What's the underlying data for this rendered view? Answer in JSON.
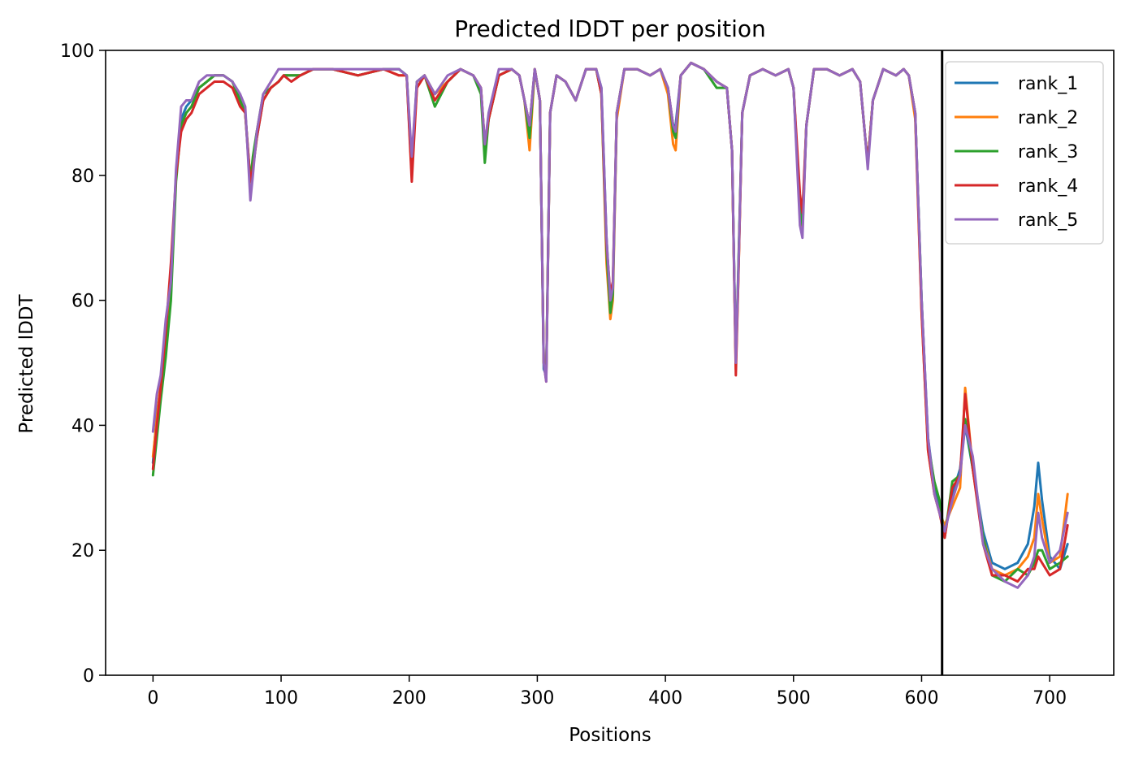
{
  "chart_data": {
    "type": "line",
    "title": "Predicted lDDT per position",
    "xlabel": "Positions",
    "ylabel": "Predicted lDDT",
    "xlim": [
      -37,
      750
    ],
    "ylim": [
      0,
      100
    ],
    "xticks": [
      0,
      100,
      200,
      300,
      400,
      500,
      600,
      700
    ],
    "yticks": [
      0,
      20,
      40,
      60,
      80,
      100
    ],
    "grid": false,
    "legend_position": "top-right",
    "vline": {
      "x": 616,
      "color": "#000000"
    },
    "series": [
      {
        "name": "rank_1",
        "color": "#1f77b4",
        "key_x": [
          0,
          3,
          6,
          10,
          14,
          18,
          22,
          26,
          30,
          36,
          42,
          48,
          55,
          62,
          68,
          72,
          76,
          78,
          81,
          86,
          92,
          98,
          102,
          108,
          115,
          125,
          140,
          160,
          180,
          192,
          198,
          202,
          206,
          212,
          220,
          230,
          240,
          250,
          256,
          259,
          262,
          270,
          280,
          286,
          290,
          294,
          298,
          302,
          305,
          307,
          310,
          315,
          322,
          330,
          338,
          346,
          350,
          354,
          357,
          359,
          362,
          368,
          378,
          388,
          396,
          402,
          406,
          408,
          412,
          420,
          430,
          440,
          448,
          452,
          455,
          457,
          460,
          466,
          476,
          486,
          496,
          500,
          505,
          507,
          510,
          516,
          526,
          536,
          546,
          552,
          556,
          558,
          562,
          570,
          580,
          586,
          590,
          595,
          600,
          605,
          610,
          614,
          618,
          624,
          630,
          634,
          640,
          648,
          655,
          665,
          675,
          683,
          688,
          691,
          694,
          700,
          708,
          714
        ],
        "key_y": [
          34,
          42,
          46,
          53,
          61,
          80,
          89,
          91,
          92,
          94,
          95,
          96,
          96,
          95,
          92,
          90,
          78,
          81,
          86,
          92,
          94,
          95,
          96,
          96,
          96,
          97,
          97,
          96,
          97,
          97,
          96,
          80,
          95,
          96,
          93,
          95,
          97,
          96,
          94,
          84,
          89,
          96,
          97,
          96,
          92,
          88,
          97,
          92,
          49,
          48,
          90,
          96,
          95,
          92,
          97,
          97,
          94,
          70,
          59,
          62,
          90,
          97,
          97,
          96,
          97,
          94,
          88,
          88,
          96,
          98,
          97,
          95,
          94,
          84,
          50,
          65,
          90,
          96,
          97,
          96,
          97,
          94,
          75,
          72,
          88,
          97,
          97,
          96,
          97,
          95,
          86,
          82,
          92,
          97,
          96,
          97,
          96,
          90,
          60,
          38,
          30,
          27,
          23,
          29,
          33,
          40,
          33,
          23,
          18,
          17,
          18,
          21,
          27,
          34,
          28,
          19,
          17,
          21
        ]
      },
      {
        "name": "rank_2",
        "color": "#ff7f0e",
        "key_x": [
          0,
          3,
          6,
          10,
          14,
          18,
          22,
          26,
          30,
          36,
          42,
          48,
          55,
          62,
          68,
          72,
          76,
          78,
          81,
          86,
          92,
          98,
          102,
          108,
          115,
          125,
          140,
          160,
          180,
          192,
          198,
          202,
          206,
          212,
          220,
          230,
          240,
          250,
          256,
          259,
          262,
          270,
          280,
          286,
          290,
          294,
          298,
          302,
          305,
          307,
          310,
          315,
          322,
          330,
          338,
          346,
          350,
          354,
          357,
          359,
          362,
          368,
          378,
          388,
          396,
          402,
          406,
          408,
          412,
          420,
          430,
          440,
          448,
          452,
          455,
          457,
          460,
          466,
          476,
          486,
          496,
          500,
          505,
          507,
          510,
          516,
          526,
          536,
          546,
          552,
          556,
          558,
          562,
          570,
          580,
          586,
          590,
          595,
          600,
          605,
          610,
          614,
          618,
          624,
          630,
          634,
          640,
          648,
          655,
          665,
          675,
          683,
          688,
          691,
          694,
          700,
          708,
          714
        ],
        "key_y": [
          35,
          41,
          47,
          54,
          62,
          80,
          88,
          90,
          91,
          94,
          95,
          96,
          96,
          95,
          92,
          90,
          78,
          82,
          87,
          92,
          94,
          95,
          96,
          96,
          96,
          97,
          97,
          96,
          97,
          96,
          96,
          81,
          94,
          96,
          93,
          95,
          97,
          96,
          94,
          85,
          89,
          96,
          97,
          96,
          92,
          84,
          97,
          92,
          50,
          48,
          90,
          96,
          95,
          92,
          97,
          97,
          93,
          66,
          57,
          60,
          89,
          97,
          97,
          96,
          97,
          93,
          85,
          84,
          96,
          98,
          97,
          95,
          94,
          84,
          49,
          64,
          90,
          96,
          97,
          96,
          97,
          94,
          74,
          71,
          88,
          97,
          97,
          96,
          97,
          95,
          86,
          82,
          92,
          97,
          96,
          97,
          96,
          89,
          58,
          36,
          29,
          26,
          24,
          27,
          30,
          46,
          33,
          22,
          17,
          16,
          17,
          19,
          22,
          29,
          25,
          18,
          19,
          29
        ]
      },
      {
        "name": "rank_3",
        "color": "#2ca02c",
        "key_x": [
          0,
          3,
          6,
          10,
          14,
          18,
          22,
          26,
          30,
          36,
          42,
          48,
          55,
          62,
          68,
          72,
          76,
          78,
          81,
          86,
          92,
          98,
          102,
          108,
          115,
          125,
          140,
          160,
          180,
          192,
          198,
          202,
          206,
          212,
          220,
          230,
          240,
          250,
          256,
          259,
          262,
          270,
          280,
          286,
          290,
          294,
          298,
          302,
          305,
          307,
          310,
          315,
          322,
          330,
          338,
          346,
          350,
          354,
          357,
          359,
          362,
          368,
          378,
          388,
          396,
          402,
          406,
          408,
          412,
          420,
          430,
          440,
          448,
          452,
          455,
          457,
          460,
          466,
          476,
          486,
          496,
          500,
          505,
          507,
          510,
          516,
          526,
          536,
          546,
          552,
          556,
          558,
          562,
          570,
          580,
          586,
          590,
          595,
          600,
          605,
          610,
          614,
          618,
          624,
          630,
          634,
          640,
          648,
          655,
          665,
          675,
          683,
          688,
          691,
          694,
          700,
          708,
          714
        ],
        "key_y": [
          32,
          38,
          44,
          51,
          60,
          79,
          88,
          90,
          91,
          94,
          95,
          96,
          96,
          95,
          92,
          90,
          79,
          83,
          87,
          93,
          94,
          95,
          96,
          96,
          96,
          97,
          97,
          96,
          97,
          97,
          96,
          82,
          95,
          96,
          91,
          95,
          97,
          96,
          93,
          82,
          89,
          96,
          97,
          96,
          92,
          86,
          97,
          92,
          50,
          48,
          90,
          96,
          95,
          92,
          97,
          97,
          93,
          68,
          58,
          61,
          90,
          97,
          97,
          96,
          97,
          94,
          87,
          86,
          96,
          98,
          97,
          94,
          94,
          84,
          50,
          66,
          90,
          96,
          97,
          96,
          97,
          94,
          75,
          72,
          88,
          97,
          97,
          96,
          97,
          95,
          86,
          82,
          92,
          97,
          96,
          97,
          96,
          90,
          60,
          37,
          31,
          28,
          22,
          31,
          32,
          41,
          33,
          22,
          16,
          15,
          17,
          16,
          18,
          20,
          20,
          17,
          18,
          19
        ]
      },
      {
        "name": "rank_4",
        "color": "#d62728",
        "key_x": [
          0,
          3,
          6,
          10,
          14,
          18,
          22,
          26,
          30,
          36,
          42,
          48,
          55,
          62,
          68,
          72,
          76,
          78,
          81,
          86,
          92,
          98,
          102,
          108,
          115,
          125,
          140,
          160,
          180,
          192,
          198,
          202,
          206,
          212,
          220,
          230,
          240,
          250,
          256,
          259,
          262,
          270,
          280,
          286,
          290,
          294,
          298,
          302,
          305,
          307,
          310,
          315,
          322,
          330,
          338,
          346,
          350,
          354,
          357,
          359,
          362,
          368,
          378,
          388,
          396,
          402,
          406,
          408,
          412,
          420,
          430,
          440,
          448,
          452,
          455,
          457,
          460,
          466,
          476,
          486,
          496,
          500,
          505,
          507,
          510,
          516,
          526,
          536,
          546,
          552,
          556,
          558,
          562,
          570,
          580,
          586,
          590,
          595,
          600,
          605,
          610,
          614,
          618,
          624,
          630,
          634,
          640,
          648,
          655,
          665,
          675,
          683,
          688,
          691,
          694,
          700,
          708,
          714
        ],
        "key_y": [
          33,
          40,
          46,
          55,
          66,
          80,
          87,
          89,
          90,
          93,
          94,
          95,
          95,
          94,
          91,
          90,
          79,
          81,
          86,
          92,
          94,
          95,
          96,
          95,
          96,
          97,
          97,
          96,
          97,
          96,
          96,
          79,
          94,
          96,
          92,
          95,
          97,
          96,
          94,
          85,
          89,
          96,
          97,
          96,
          92,
          88,
          97,
          92,
          50,
          47,
          90,
          96,
          95,
          92,
          97,
          97,
          93,
          69,
          61,
          63,
          90,
          97,
          97,
          96,
          97,
          94,
          88,
          87,
          96,
          98,
          97,
          95,
          94,
          84,
          48,
          64,
          90,
          96,
          97,
          96,
          97,
          94,
          77,
          74,
          88,
          97,
          97,
          96,
          97,
          95,
          86,
          82,
          92,
          97,
          96,
          97,
          96,
          90,
          58,
          36,
          29,
          26,
          22,
          30,
          32,
          45,
          33,
          21,
          16,
          16,
          15,
          17,
          17,
          19,
          18,
          16,
          17,
          24
        ]
      },
      {
        "name": "rank_5",
        "color": "#9467bd",
        "key_x": [
          0,
          3,
          6,
          10,
          14,
          18,
          22,
          26,
          30,
          36,
          42,
          48,
          55,
          62,
          68,
          72,
          76,
          78,
          81,
          86,
          92,
          98,
          102,
          108,
          115,
          125,
          140,
          160,
          180,
          192,
          198,
          202,
          206,
          212,
          220,
          230,
          240,
          250,
          256,
          259,
          262,
          270,
          280,
          286,
          290,
          294,
          298,
          302,
          305,
          307,
          310,
          315,
          322,
          330,
          338,
          346,
          350,
          354,
          357,
          359,
          362,
          368,
          378,
          388,
          396,
          402,
          406,
          408,
          412,
          420,
          430,
          440,
          448,
          452,
          455,
          457,
          460,
          466,
          476,
          486,
          496,
          500,
          505,
          507,
          510,
          516,
          526,
          536,
          546,
          552,
          556,
          558,
          562,
          570,
          580,
          586,
          590,
          595,
          600,
          605,
          610,
          614,
          618,
          624,
          630,
          634,
          640,
          648,
          655,
          665,
          675,
          683,
          688,
          691,
          694,
          700,
          708,
          714
        ],
        "key_y": [
          39,
          45,
          48,
          57,
          63,
          81,
          91,
          92,
          92,
          95,
          96,
          96,
          96,
          95,
          93,
          91,
          76,
          80,
          87,
          93,
          95,
          97,
          97,
          97,
          97,
          97,
          97,
          97,
          97,
          97,
          96,
          83,
          95,
          96,
          93,
          96,
          97,
          96,
          94,
          85,
          90,
          97,
          97,
          96,
          92,
          88,
          97,
          92,
          50,
          47,
          90,
          96,
          95,
          92,
          97,
          97,
          94,
          70,
          60,
          62,
          90,
          97,
          97,
          96,
          97,
          94,
          88,
          87,
          96,
          98,
          97,
          95,
          94,
          84,
          50,
          65,
          90,
          96,
          97,
          96,
          97,
          94,
          72,
          70,
          88,
          97,
          97,
          96,
          97,
          95,
          86,
          81,
          92,
          97,
          96,
          97,
          96,
          90,
          60,
          38,
          29,
          26,
          23,
          28,
          32,
          40,
          35,
          21,
          17,
          15,
          14,
          16,
          19,
          26,
          22,
          18,
          20,
          26
        ]
      }
    ]
  }
}
